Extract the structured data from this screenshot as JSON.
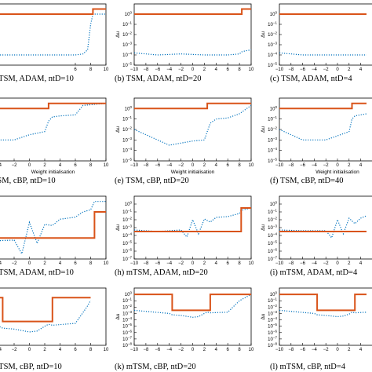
{
  "chart_data": [
    {
      "type": "line",
      "caption": "mTSM, ADAM, ntD=10",
      "x": [
        -10,
        -8,
        -6,
        -4,
        -2,
        0,
        2,
        4,
        6,
        7,
        7.6,
        8,
        8.3,
        10
      ],
      "y_log10": {
        "dotted": [
          -4,
          -4,
          -4,
          -4,
          -4,
          -4,
          -4,
          -4,
          -4,
          -3.9,
          -3.5,
          -1,
          0,
          0
        ],
        "solid": [
          0,
          0,
          0,
          0,
          0,
          0,
          0,
          0,
          0,
          0,
          0,
          0,
          0.5,
          0.5
        ]
      },
      "xticks": [
        6,
        8,
        10
      ]
    },
    {
      "type": "line",
      "caption": "(b) TSM, ADAM, ntD=20",
      "x": [
        -10,
        -6,
        -2,
        2,
        6,
        8,
        8.4,
        9,
        10
      ],
      "y_log10": {
        "dotted": [
          -3.8,
          -4,
          -3.9,
          -4,
          -4,
          -3.9,
          -3.7,
          -3.6,
          -3.5
        ],
        "solid": [
          0,
          0,
          0,
          0,
          0,
          0,
          0.5,
          0.5,
          0.5
        ]
      },
      "xticks": [
        -10,
        -8,
        -6,
        -4,
        -2,
        0,
        2,
        4,
        6,
        8,
        10
      ],
      "ylabel": "Δu",
      "yticks_exp": [
        0,
        -1,
        -2,
        -3,
        -4,
        -5
      ]
    },
    {
      "type": "line",
      "caption": "(c) TSM, ADAM, ntD=4",
      "x": [
        -10,
        -6,
        -2,
        2,
        5
      ],
      "y_log10": {
        "dotted": [
          -3.8,
          -4,
          -4,
          -4,
          -4
        ],
        "solid": [
          0,
          0,
          0,
          0,
          0
        ]
      },
      "xticks": [
        -10,
        -8,
        -6,
        -4,
        -2,
        0,
        2,
        4
      ],
      "ylabel": "Δu",
      "yticks_exp": [
        0,
        -1,
        -2,
        -3,
        -4,
        -5
      ]
    },
    {
      "type": "line",
      "caption": "TSM, cBP, ntD=10",
      "x": [
        -10,
        -6,
        -2,
        0,
        2,
        2.5,
        3,
        4,
        6,
        7,
        10
      ],
      "y_log10": {
        "dotted": [
          -2,
          -3,
          -3,
          -2.5,
          -2.2,
          -1.2,
          -0.8,
          -0.7,
          -0.6,
          0.3,
          0.5
        ],
        "solid": [
          0,
          0,
          0,
          0,
          0,
          0.5,
          0.5,
          0.5,
          0.5,
          0.5,
          0.5
        ]
      },
      "xticks": [
        -6,
        -4,
        -2,
        0,
        2,
        4,
        6,
        8,
        10
      ],
      "xlabel": "Weight initialisation"
    },
    {
      "type": "line",
      "caption": "(e) TSM, cBP, ntD=20",
      "x": [
        -10,
        -6,
        -4,
        -2,
        0,
        2,
        2.5,
        3,
        4,
        6,
        8,
        10
      ],
      "y_log10": {
        "dotted": [
          -2,
          -3,
          -3.5,
          -3.3,
          -3.1,
          -3,
          -2.2,
          -1.4,
          -1,
          -0.9,
          -0.5,
          0.3
        ],
        "solid": [
          0,
          0,
          0,
          0,
          0,
          0,
          0.5,
          0.5,
          0.5,
          0.5,
          0.5,
          0.5
        ]
      },
      "xticks": [
        -10,
        -8,
        -6,
        -4,
        -2,
        0,
        2,
        4,
        6,
        8,
        10
      ],
      "xlabel": "Weight initialisation",
      "ylabel": "Δu",
      "yticks_exp": [
        0,
        -1,
        -2,
        -3,
        -4,
        -5
      ]
    },
    {
      "type": "line",
      "caption": "(f) TSM, cBP, ntD=40",
      "x": [
        -10,
        -6,
        -2,
        0,
        2,
        2.5,
        3,
        4,
        5
      ],
      "y_log10": {
        "dotted": [
          -2,
          -3,
          -3,
          -2.6,
          -2.2,
          -1,
          -0.7,
          -0.6,
          -0.5
        ],
        "solid": [
          0,
          0,
          0,
          0,
          0,
          0.5,
          0.5,
          0.5,
          0.5
        ]
      },
      "xticks": [
        -10,
        -8,
        -6,
        -4,
        -2,
        0,
        2,
        4
      ],
      "xlabel": "Weight initialisation",
      "ylabel": "Δu",
      "yticks_exp": [
        0,
        -1,
        -2,
        -3,
        -4,
        -5
      ]
    },
    {
      "type": "line",
      "caption": "mTSM, ADAM, ntD=10",
      "x": [
        -10,
        -6,
        -2,
        -1,
        0,
        1,
        2,
        3,
        4,
        6,
        7,
        8,
        8.5,
        10
      ],
      "y_log10": {
        "dotted": [
          -3.3,
          -3.3,
          -3.2,
          -4.5,
          -1.5,
          -3.5,
          -1.7,
          -1.8,
          -1.2,
          -1,
          -0.5,
          -0.3,
          0.5,
          0.5
        ],
        "solid": [
          -3,
          -3,
          -3,
          -3,
          -3,
          -3,
          -3,
          -3,
          -3,
          -3,
          -3,
          -3,
          -0.5,
          -0.5
        ]
      },
      "xticks": [
        -6,
        -4,
        -2,
        0,
        2,
        4,
        6,
        8,
        10
      ]
    },
    {
      "type": "line",
      "caption": "(h) mTSM, ADAM, ntD=20",
      "x": [
        -10,
        -6,
        -2,
        -1,
        0,
        1,
        2,
        3,
        4,
        6,
        8,
        8.3,
        10
      ],
      "y_log10": {
        "dotted": [
          -3.3,
          -3.5,
          -3.3,
          -4.2,
          -2,
          -3.8,
          -1.9,
          -2.3,
          -1.7,
          -1.6,
          -1.2,
          -0.8,
          -0.5
        ],
        "solid": [
          -3.5,
          -3.5,
          -3.5,
          -3.5,
          -3.5,
          -3.5,
          -3.5,
          -3.5,
          -3.5,
          -3.5,
          -3.5,
          -0.5,
          -0.5
        ]
      },
      "xticks": [
        -10,
        -8,
        -6,
        -4,
        -2,
        0,
        2,
        4,
        6,
        8,
        10
      ],
      "ylabel": "Δu",
      "yticks_exp": [
        0,
        -1,
        -2,
        -3,
        -4,
        -5,
        -6,
        -7
      ]
    },
    {
      "type": "line",
      "caption": "(i) mTSM, ADAM, ntD=4",
      "x": [
        -10,
        -6,
        -2,
        -1,
        0,
        1,
        2,
        3,
        4,
        5
      ],
      "y_log10": {
        "dotted": [
          -3.3,
          -3.4,
          -3.4,
          -4.3,
          -2,
          -3.8,
          -1.8,
          -2.5,
          -1.8,
          -1.5
        ],
        "solid": [
          -3.5,
          -3.5,
          -3.5,
          -3.5,
          -3.5,
          -3.5,
          -3.5,
          -3.5,
          -3.5,
          -3.5
        ]
      },
      "xticks": [
        -10,
        -8,
        -6,
        -4,
        -2,
        0,
        2,
        4
      ],
      "ylabel": "Δu",
      "yticks_exp": [
        0,
        -1,
        -2,
        -3,
        -4,
        -5,
        -6,
        -7
      ]
    },
    {
      "type": "line",
      "caption": "mTSM, cBP, ntD=10",
      "x": [
        -10,
        -4,
        -3.5,
        -2,
        0,
        1,
        2,
        2.5,
        3,
        6,
        7.5,
        8
      ],
      "y_log10": {
        "dotted": [
          -2.5,
          -3,
          -3.2,
          -3.3,
          -3.6,
          -3.5,
          -3,
          -2.8,
          -2.9,
          -2.7,
          -1,
          -0.3
        ],
        "solid": [
          0,
          0,
          -2.5,
          -2.5,
          -2.5,
          -2.5,
          -2.5,
          -2.5,
          0,
          0,
          0,
          0
        ]
      },
      "xticks": [
        -6,
        -4,
        -2,
        0,
        2,
        4,
        6,
        8,
        10
      ]
    },
    {
      "type": "line",
      "caption": "(k) mTSM, cBP, ntD=20",
      "x": [
        -10,
        -4,
        -3.5,
        -2,
        0,
        1,
        2,
        2.5,
        3,
        6,
        8,
        10
      ],
      "y_log10": {
        "dotted": [
          -2.5,
          -3,
          -3.2,
          -3.3,
          -3.6,
          -3.5,
          -3,
          -2.8,
          -2.9,
          -2.8,
          -1,
          0
        ],
        "solid": [
          0,
          0,
          -2.5,
          -2.5,
          -2.5,
          -2.5,
          -2.5,
          -2.5,
          0,
          0,
          0,
          0
        ]
      },
      "xticks": [
        -10,
        -8,
        -6,
        -4,
        -2,
        0,
        2,
        4,
        6,
        8,
        10
      ],
      "ylabel": "Δu",
      "yticks_exp": [
        0,
        -1,
        -2,
        -3,
        -4,
        -5,
        -6,
        -7,
        -8
      ]
    },
    {
      "type": "line",
      "caption": "(l) mTSM, cBP, ntD=4",
      "x": [
        -10,
        -4,
        -3.5,
        -2,
        0,
        1,
        2,
        2.5,
        3,
        5
      ],
      "y_log10": {
        "dotted": [
          -2.5,
          -3,
          -3.2,
          -3.3,
          -3.5,
          -3.4,
          -3.1,
          -2.8,
          -2.9,
          -2.8
        ],
        "solid": [
          0,
          0,
          -2.5,
          -2.5,
          -2.5,
          -2.5,
          -2.5,
          -2.5,
          0,
          0
        ]
      },
      "xticks": [
        -10,
        -8,
        -6,
        -4,
        -2,
        0,
        2,
        4
      ],
      "ylabel": "Δu",
      "yticks_exp": [
        0,
        -1,
        -2,
        -3,
        -4,
        -5,
        -6,
        -7,
        -8
      ]
    }
  ],
  "colors": {
    "solid": "#d95319",
    "dotted": "#0072bd"
  }
}
